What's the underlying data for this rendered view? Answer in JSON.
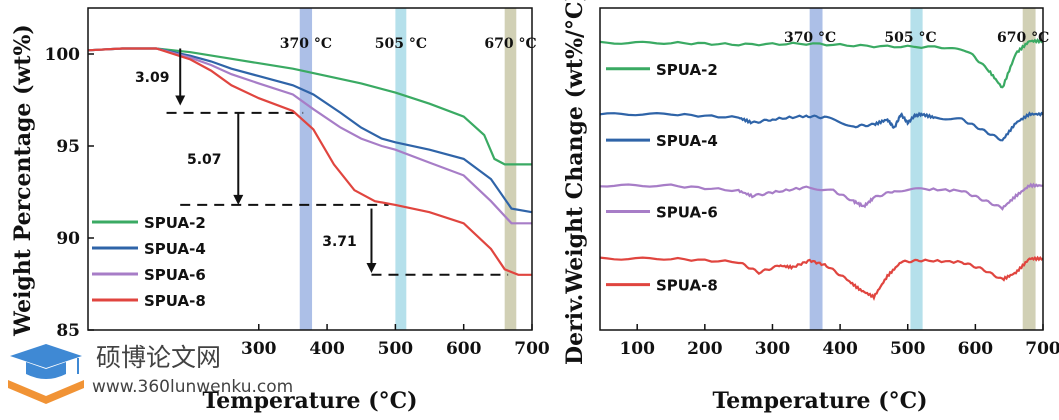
{
  "colors": {
    "SPUA-2": "#3aaa63",
    "SPUA-4": "#2f64a8",
    "SPUA-6": "#a77dc7",
    "SPUA-8": "#e0453f",
    "band_370": "#9db4e3",
    "band_505": "#a8dbe8",
    "band_670": "#c9c8a8",
    "watermark_blue": "#2f7fd1",
    "watermark_orange": "#f08a24"
  },
  "chart_data": [
    {
      "type": "line",
      "panel": "left",
      "xlabel": "Temperature (°C)",
      "ylabel": "Weight Percentage (wt%)",
      "xlim": [
        50,
        700
      ],
      "ylim": [
        85,
        102.5
      ],
      "xticks": [
        "300",
        "400",
        "500",
        "600",
        "700"
      ],
      "yticks": [
        "85",
        "90",
        "95",
        "100"
      ],
      "x_tick_values": [
        300,
        400,
        500,
        600,
        700
      ],
      "y_tick_values": [
        85,
        90,
        95,
        100
      ],
      "bands": [
        {
          "label": "370 °C",
          "from": 360,
          "to": 378,
          "color_key": "band_370"
        },
        {
          "label": "505 °C",
          "from": 500,
          "to": 516,
          "color_key": "band_505"
        },
        {
          "label": "670 °C",
          "from": 660,
          "to": 677,
          "color_key": "band_670"
        }
      ],
      "series": [
        {
          "name": "SPUA-2",
          "x": [
            50,
            100,
            150,
            200,
            250,
            300,
            350,
            400,
            450,
            500,
            550,
            600,
            630,
            645,
            660,
            700
          ],
          "y": [
            100.2,
            100.3,
            100.3,
            100.1,
            99.8,
            99.5,
            99.2,
            98.8,
            98.4,
            97.9,
            97.3,
            96.6,
            95.6,
            94.3,
            94.0,
            94.0
          ]
        },
        {
          "name": "SPUA-4",
          "x": [
            50,
            100,
            150,
            200,
            230,
            260,
            300,
            350,
            380,
            420,
            450,
            480,
            500,
            550,
            600,
            640,
            670,
            700
          ],
          "y": [
            100.2,
            100.3,
            100.3,
            99.9,
            99.6,
            99.2,
            98.8,
            98.3,
            97.8,
            96.8,
            96.0,
            95.4,
            95.2,
            94.8,
            94.3,
            93.2,
            91.6,
            91.4
          ]
        },
        {
          "name": "SPUA-6",
          "x": [
            50,
            100,
            150,
            200,
            230,
            260,
            300,
            350,
            380,
            420,
            450,
            480,
            500,
            550,
            600,
            640,
            670,
            700
          ],
          "y": [
            100.2,
            100.3,
            100.3,
            99.8,
            99.4,
            98.9,
            98.4,
            97.8,
            97.0,
            96.0,
            95.4,
            95.0,
            94.8,
            94.1,
            93.4,
            92.0,
            90.8,
            90.8
          ]
        },
        {
          "name": "SPUA-8",
          "x": [
            50,
            100,
            150,
            200,
            230,
            260,
            300,
            350,
            380,
            410,
            440,
            470,
            500,
            550,
            600,
            640,
            660,
            680,
            700
          ],
          "y": [
            100.2,
            100.3,
            100.3,
            99.7,
            99.1,
            98.3,
            97.6,
            96.9,
            95.9,
            94.0,
            92.6,
            92.0,
            91.8,
            91.4,
            90.8,
            89.4,
            88.3,
            88.0,
            88.0
          ]
        }
      ],
      "legend": {
        "placement": "lower-left",
        "entries": [
          "SPUA-2",
          "SPUA-4",
          "SPUA-6",
          "SPUA-8"
        ]
      },
      "annotations": [
        {
          "text": "3.09",
          "arrow_from": 100.3,
          "arrow_to": 97.2,
          "x": 185
        },
        {
          "text": "5.07",
          "arrow_from": 96.8,
          "arrow_to": 91.8,
          "x": 270
        },
        {
          "text": "3.71",
          "arrow_from": 91.6,
          "arrow_to": 88.1,
          "x": 465
        }
      ],
      "dashed_levels": [
        {
          "y": 96.8,
          "x_from": 165,
          "x_to": 365
        },
        {
          "y": 91.8,
          "x_from": 185,
          "x_to": 490
        },
        {
          "y": 88.0,
          "x_from": 465,
          "x_to": 665
        }
      ]
    },
    {
      "type": "line",
      "panel": "right",
      "xlabel": "Temperature (°C)",
      "ylabel": "Deriv.Weight Change (wt%/°C)",
      "xlim": [
        45,
        700
      ],
      "xticks": [
        "100",
        "200",
        "300",
        "400",
        "500",
        "600",
        "700"
      ],
      "x_tick_values": [
        100,
        200,
        300,
        400,
        500,
        600,
        700
      ],
      "y_ticks_shown": false,
      "bands": [
        {
          "label": "370 °C",
          "from": 355,
          "to": 374,
          "color_key": "band_370"
        },
        {
          "label": "505 °C",
          "from": 504,
          "to": 522,
          "color_key": "band_505"
        },
        {
          "label": "670 °C",
          "from": 670,
          "to": 689,
          "color_key": "band_670"
        }
      ],
      "series": [
        {
          "name": "SPUA-2",
          "baseline": 0,
          "x": [
            45,
            150,
            250,
            350,
            450,
            550,
            590,
            620,
            640,
            660,
            680,
            700
          ],
          "y": [
            0.0,
            0.0,
            -0.1,
            -0.05,
            -0.2,
            -0.25,
            -0.5,
            -1.6,
            -2.6,
            -0.6,
            0.1,
            0.1
          ]
        },
        {
          "name": "SPUA-4",
          "baseline": -4.1,
          "x": [
            45,
            150,
            250,
            270,
            300,
            350,
            380,
            420,
            450,
            470,
            480,
            490,
            500,
            510,
            520,
            540,
            580,
            610,
            640,
            660,
            680,
            700
          ],
          "y": [
            -4.1,
            -4.1,
            -4.3,
            -4.6,
            -4.4,
            -4.2,
            -4.3,
            -4.8,
            -4.7,
            -4.4,
            -4.9,
            -4.1,
            -4.6,
            -4.2,
            -4.1,
            -4.3,
            -4.4,
            -5.0,
            -5.6,
            -4.6,
            -4.1,
            -4.1
          ]
        },
        {
          "name": "SPUA-6",
          "baseline": -8.2,
          "x": [
            45,
            150,
            250,
            270,
            300,
            350,
            390,
            420,
            435,
            450,
            480,
            520,
            580,
            610,
            640,
            660,
            680,
            700
          ],
          "y": [
            -8.2,
            -8.2,
            -8.5,
            -8.8,
            -8.6,
            -8.3,
            -8.5,
            -9.1,
            -9.4,
            -8.9,
            -8.5,
            -8.4,
            -8.5,
            -9.0,
            -9.5,
            -8.8,
            -8.2,
            -8.2
          ]
        },
        {
          "name": "SPUA-8",
          "baseline": -12.4,
          "x": [
            45,
            150,
            250,
            280,
            310,
            330,
            355,
            380,
            410,
            430,
            450,
            470,
            490,
            520,
            580,
            610,
            640,
            660,
            680,
            700
          ],
          "y": [
            -12.4,
            -12.4,
            -12.6,
            -13.2,
            -12.8,
            -12.9,
            -12.5,
            -12.8,
            -13.6,
            -14.2,
            -14.6,
            -13.4,
            -12.6,
            -12.5,
            -12.6,
            -13.0,
            -13.6,
            -13.2,
            -12.4,
            -12.4
          ]
        }
      ],
      "ylim": [
        -16.5,
        2.0
      ],
      "legend": {
        "placement": "inline-left",
        "entries": [
          "SPUA-2",
          "SPUA-4",
          "SPUA-6",
          "SPUA-8"
        ]
      }
    }
  ],
  "watermark": {
    "title": "硕博论文网",
    "url": "www.360lunwenku.com"
  }
}
